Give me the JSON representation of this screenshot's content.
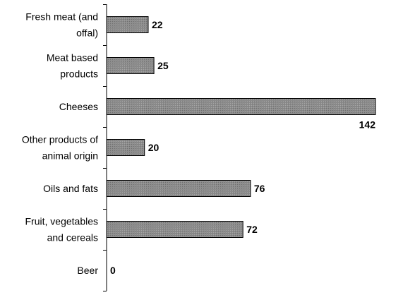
{
  "chart_data": {
    "type": "bar",
    "orientation": "horizontal",
    "categories": [
      [
        "Fresh meat (and",
        "offal)"
      ],
      [
        "Meat based",
        "products"
      ],
      [
        "Cheeses"
      ],
      [
        "Other products of",
        "animal origin"
      ],
      [
        "Oils and fats"
      ],
      [
        "Fruit, vegetables",
        "and cereals"
      ],
      [
        "Beer"
      ]
    ],
    "values": [
      22,
      25,
      142,
      20,
      76,
      72,
      0
    ],
    "value_labels": [
      "22",
      "25",
      "142",
      "20",
      "76",
      "72",
      "0"
    ],
    "xlim": [
      0,
      156
    ],
    "grid": false,
    "legend": "none",
    "colors": {
      "bar_fill": "#8c8c8c",
      "bar_stroke": "#000000",
      "axis": "#000000",
      "text": "#000000"
    }
  }
}
